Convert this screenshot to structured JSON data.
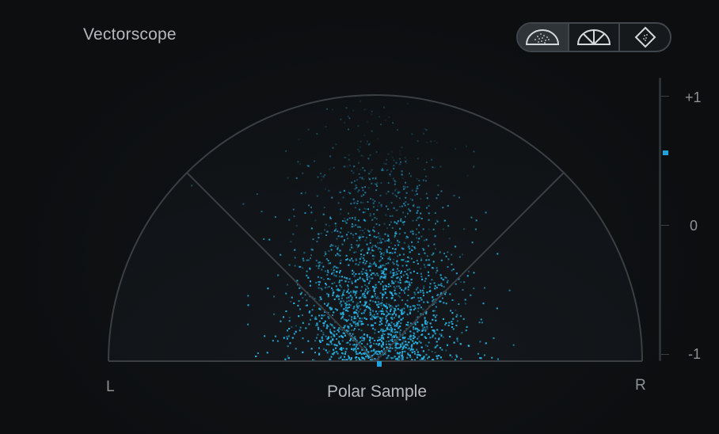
{
  "header": {
    "title": "Vectorscope"
  },
  "display_modes": {
    "items": [
      {
        "name": "polar-sample-mode",
        "active": true
      },
      {
        "name": "polar-level-mode",
        "active": false
      },
      {
        "name": "lissajous-mode",
        "active": false
      }
    ]
  },
  "scope": {
    "left_label": "L",
    "right_label": "R",
    "mode_label": "Polar Sample"
  },
  "correlation_meter": {
    "top_label": "+1",
    "mid_label": "0",
    "bottom_label": "-1",
    "value": 0.56
  },
  "colors": {
    "accent": "#1fa3dd",
    "dots": "#2ab4e6",
    "grid": "#3a3f44"
  }
}
